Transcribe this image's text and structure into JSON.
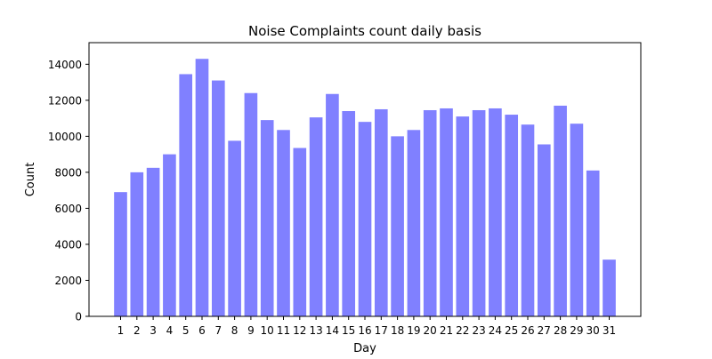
{
  "chart_data": {
    "type": "bar",
    "title": "Noise Complaints count daily basis",
    "xlabel": "Day",
    "ylabel": "Count",
    "ylim": [
      0,
      15200
    ],
    "yticks": [
      0,
      2000,
      4000,
      6000,
      8000,
      10000,
      12000,
      14000
    ],
    "categories": [
      "1",
      "2",
      "3",
      "4",
      "5",
      "6",
      "7",
      "8",
      "9",
      "10",
      "11",
      "12",
      "13",
      "14",
      "15",
      "16",
      "17",
      "18",
      "19",
      "20",
      "21",
      "22",
      "23",
      "24",
      "25",
      "26",
      "27",
      "28",
      "29",
      "30",
      "31"
    ],
    "values": [
      6900,
      8000,
      8250,
      9000,
      13450,
      14300,
      13100,
      9750,
      12400,
      10900,
      10350,
      9350,
      11050,
      12350,
      11400,
      10800,
      11500,
      10000,
      10350,
      11450,
      11550,
      11100,
      11450,
      11550,
      11200,
      10650,
      9550,
      11700,
      10700,
      8100,
      3150
    ],
    "bar_color": "#8080ff",
    "grid": false,
    "legend": "none"
  }
}
